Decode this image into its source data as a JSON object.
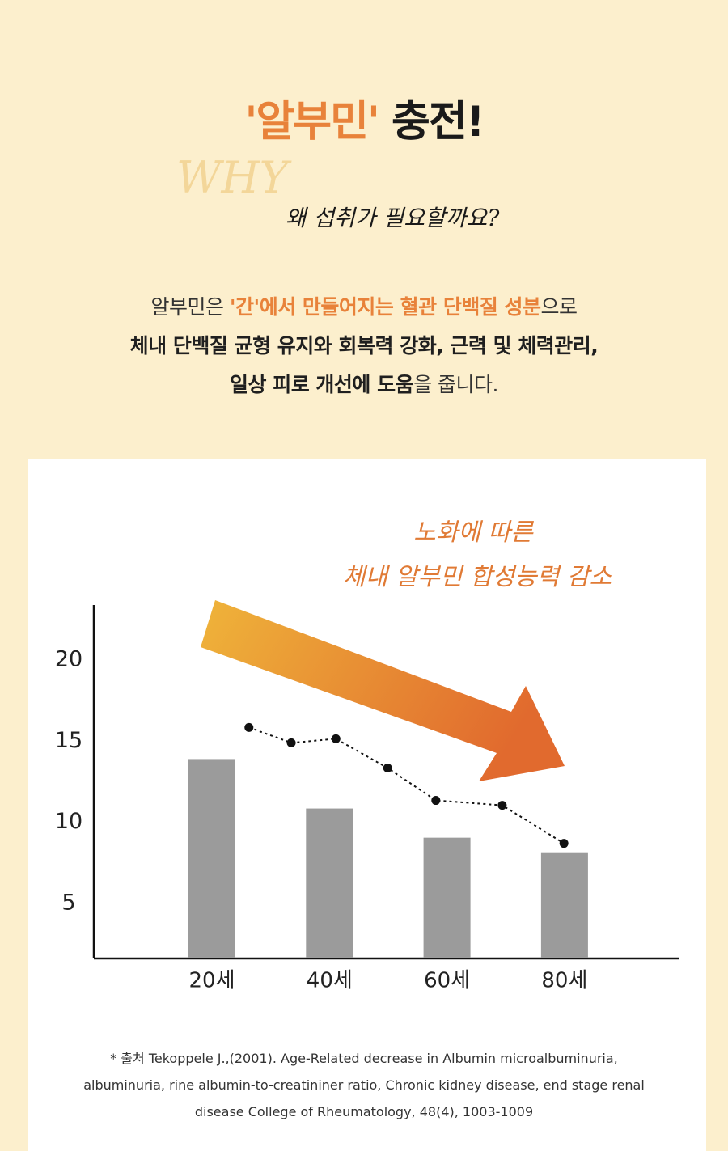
{
  "header": {
    "title_highlight": "'알부민'",
    "title_rest": "충전!",
    "script_word": "WHY",
    "subtitle": "왜 섭취가 필요할까요?"
  },
  "intro": {
    "line1": [
      "알부민은 ",
      "'간'에서 만들어지는 혈관 단백질 성분",
      "으로"
    ],
    "line2": "체내 단백질 균형 유지와 회복력 강화, 근력 및 체력관리,",
    "line3": [
      "일상 피로 개선에 도움",
      "을 줍니다."
    ]
  },
  "chart_data": {
    "type": "bar",
    "annotation": [
      "노화에 따른",
      "체내 알부민 합성능력 감소"
    ],
    "categories": [
      "20세",
      "40세",
      "60세",
      "80세"
    ],
    "values": [
      13.9,
      10.85,
      9.05,
      8.15
    ],
    "color": "#9b9b9b",
    "line": {
      "type": "line",
      "x": [
        26.3,
        33.5,
        41.1,
        49.9,
        58.1,
        69.4,
        79.9
      ],
      "values": [
        15.85,
        14.9,
        15.15,
        13.35,
        11.35,
        11.05,
        8.7
      ],
      "color": "#111111"
    },
    "ylim": [
      1.6,
      23.4
    ],
    "yticks": [
      5,
      10,
      15,
      20
    ]
  },
  "source": [
    "* 출처 Tekoppele J.,(2001). Age-Related decrease in Albumin microalbuminuria,",
    "albuminuria, rine albumin-to-creatininer ratio, Chronic kidney disease, end stage renal",
    "disease College of Rheumatology, 48(4), 1003-1009"
  ]
}
